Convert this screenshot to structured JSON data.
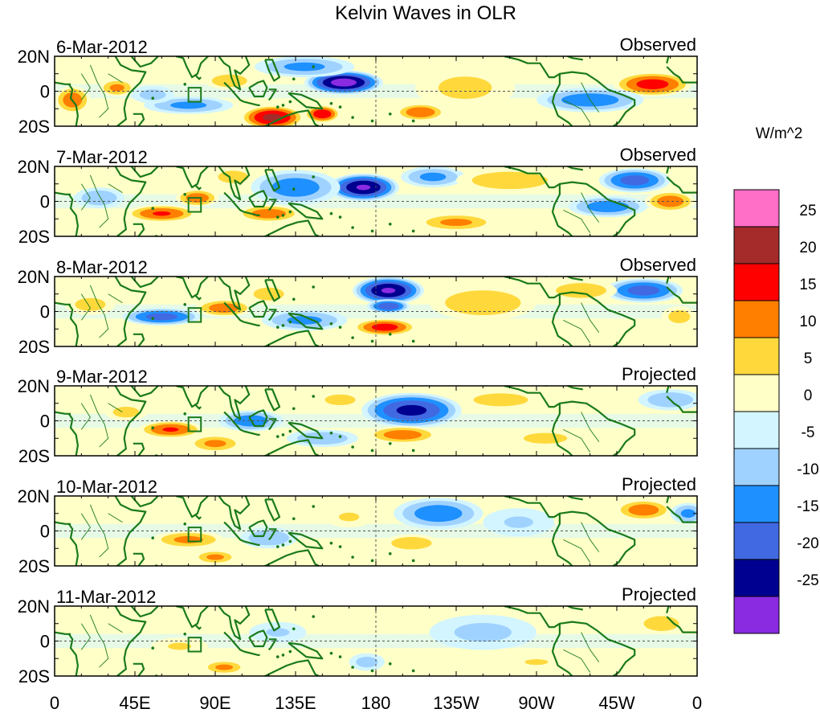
{
  "chart_data": {
    "type": "heatmap",
    "title": "Kelvin Waves in OLR",
    "colorbar": {
      "units": "W/m^2",
      "ticks": [
        "25",
        "20",
        "15",
        "10",
        "5",
        "0",
        "-5",
        "-10",
        "-15",
        "-20",
        "-25"
      ],
      "colors": [
        "#ff6ec7",
        "#a52a2a",
        "#ff0000",
        "#ff7f00",
        "#ffd93c",
        "#ffffc8",
        "#d2f5ff",
        "#a0d2ff",
        "#1e90ff",
        "#4169e1",
        "#000090",
        "#8a2be2"
      ]
    },
    "x_axis": {
      "ticks": [
        "0",
        "45E",
        "90E",
        "135E",
        "180",
        "135W",
        "90W",
        "45W",
        "0"
      ],
      "range_lon_east": [
        0,
        360
      ]
    },
    "y_axis": {
      "ticks": [
        "20N",
        "0",
        "20S"
      ],
      "range_lat": [
        -20,
        20
      ]
    },
    "reference_line": "180",
    "box_marker": {
      "lon": [
        75,
        82
      ],
      "lat": [
        -6,
        2
      ]
    },
    "panels": [
      {
        "date": "6-Mar-2012",
        "status": "Observed",
        "blobs": [
          {
            "lon": 162,
            "lat": 5,
            "amp": -28,
            "rx": 22,
            "ry": 7
          },
          {
            "lon": 122,
            "lat": -15,
            "amp": 22,
            "rx": 18,
            "ry": 7
          },
          {
            "lon": 140,
            "lat": 14,
            "amp": -12,
            "rx": 28,
            "ry": 6
          },
          {
            "lon": 335,
            "lat": 4,
            "amp": 18,
            "rx": 22,
            "ry": 7
          },
          {
            "lon": 300,
            "lat": -5,
            "amp": -14,
            "rx": 30,
            "ry": 7
          },
          {
            "lon": 230,
            "lat": 2,
            "amp": 7,
            "rx": 28,
            "ry": 12
          },
          {
            "lon": 75,
            "lat": -8,
            "amp": -12,
            "rx": 25,
            "ry": 5
          },
          {
            "lon": 35,
            "lat": 2,
            "amp": 12,
            "rx": 10,
            "ry": 5
          },
          {
            "lon": 98,
            "lat": 6,
            "amp": 10,
            "rx": 14,
            "ry": 5
          },
          {
            "lon": 150,
            "lat": -13,
            "amp": 20,
            "rx": 10,
            "ry": 5
          },
          {
            "lon": 10,
            "lat": -5,
            "amp": 14,
            "rx": 10,
            "ry": 8
          },
          {
            "lon": 205,
            "lat": -12,
            "amp": 15,
            "rx": 14,
            "ry": 5
          },
          {
            "lon": 55,
            "lat": -2,
            "amp": -8,
            "rx": 12,
            "ry": 5
          }
        ]
      },
      {
        "date": "7-Mar-2012",
        "status": "Observed",
        "blobs": [
          {
            "lon": 173,
            "lat": 8,
            "amp": -26,
            "rx": 20,
            "ry": 8
          },
          {
            "lon": 135,
            "lat": 8,
            "amp": -14,
            "rx": 25,
            "ry": 10
          },
          {
            "lon": 212,
            "lat": 14,
            "amp": -12,
            "rx": 18,
            "ry": 6
          },
          {
            "lon": 60,
            "lat": -7,
            "amp": 16,
            "rx": 20,
            "ry": 5
          },
          {
            "lon": 80,
            "lat": 2,
            "amp": 14,
            "rx": 12,
            "ry": 5
          },
          {
            "lon": 255,
            "lat": 12,
            "amp": 10,
            "rx": 30,
            "ry": 7
          },
          {
            "lon": 325,
            "lat": 12,
            "amp": -18,
            "rx": 20,
            "ry": 7
          },
          {
            "lon": 310,
            "lat": -3,
            "amp": -14,
            "rx": 22,
            "ry": 6
          },
          {
            "lon": 345,
            "lat": 0,
            "amp": 14,
            "rx": 14,
            "ry": 6
          },
          {
            "lon": 120,
            "lat": -7,
            "amp": 14,
            "rx": 18,
            "ry": 5
          },
          {
            "lon": 225,
            "lat": -12,
            "amp": 12,
            "rx": 22,
            "ry": 5
          },
          {
            "lon": 25,
            "lat": 2,
            "amp": -10,
            "rx": 14,
            "ry": 6
          },
          {
            "lon": 100,
            "lat": 14,
            "amp": 10,
            "rx": 12,
            "ry": 5
          }
        ]
      },
      {
        "date": "8-Mar-2012",
        "status": "Observed",
        "blobs": [
          {
            "lon": 187,
            "lat": 12,
            "amp": -26,
            "rx": 20,
            "ry": 8
          },
          {
            "lon": 187,
            "lat": 3,
            "amp": -20,
            "rx": 12,
            "ry": 4
          },
          {
            "lon": 60,
            "lat": -3,
            "amp": -18,
            "rx": 22,
            "ry": 5
          },
          {
            "lon": 95,
            "lat": 2,
            "amp": 14,
            "rx": 16,
            "ry": 5
          },
          {
            "lon": 185,
            "lat": -9,
            "amp": 18,
            "rx": 18,
            "ry": 5
          },
          {
            "lon": 330,
            "lat": 12,
            "amp": -18,
            "rx": 22,
            "ry": 7
          },
          {
            "lon": 240,
            "lat": 5,
            "amp": 10,
            "rx": 30,
            "ry": 10
          },
          {
            "lon": 140,
            "lat": -5,
            "amp": -12,
            "rx": 24,
            "ry": 6
          },
          {
            "lon": 295,
            "lat": 12,
            "amp": 10,
            "rx": 20,
            "ry": 6
          },
          {
            "lon": 20,
            "lat": 4,
            "amp": 8,
            "rx": 14,
            "ry": 6
          },
          {
            "lon": 120,
            "lat": 10,
            "amp": 8,
            "rx": 14,
            "ry": 6
          },
          {
            "lon": 350,
            "lat": -3,
            "amp": 8,
            "rx": 10,
            "ry": 6
          }
        ]
      },
      {
        "date": "9-Mar-2012",
        "status": "Projected",
        "blobs": [
          {
            "lon": 200,
            "lat": 6,
            "amp": -22,
            "rx": 28,
            "ry": 10
          },
          {
            "lon": 65,
            "lat": -5,
            "amp": 16,
            "rx": 18,
            "ry": 5
          },
          {
            "lon": 110,
            "lat": 0,
            "amp": -14,
            "rx": 18,
            "ry": 6
          },
          {
            "lon": 195,
            "lat": -8,
            "amp": 14,
            "rx": 20,
            "ry": 5
          },
          {
            "lon": 90,
            "lat": -13,
            "amp": 12,
            "rx": 15,
            "ry": 5
          },
          {
            "lon": 250,
            "lat": 12,
            "amp": 8,
            "rx": 25,
            "ry": 6
          },
          {
            "lon": 345,
            "lat": 12,
            "amp": -10,
            "rx": 18,
            "ry": 6
          },
          {
            "lon": 150,
            "lat": -10,
            "amp": -10,
            "rx": 20,
            "ry": 5
          },
          {
            "lon": 275,
            "lat": -10,
            "amp": 8,
            "rx": 20,
            "ry": 5
          },
          {
            "lon": 40,
            "lat": 5,
            "amp": 8,
            "rx": 12,
            "ry": 5
          },
          {
            "lon": 160,
            "lat": 12,
            "amp": 8,
            "rx": 14,
            "ry": 5
          }
        ]
      },
      {
        "date": "10-Mar-2012",
        "status": "Projected",
        "blobs": [
          {
            "lon": 215,
            "lat": 10,
            "amp": -14,
            "rx": 25,
            "ry": 9
          },
          {
            "lon": 75,
            "lat": -5,
            "amp": 12,
            "rx": 20,
            "ry": 5
          },
          {
            "lon": 330,
            "lat": 12,
            "amp": 14,
            "rx": 16,
            "ry": 6
          },
          {
            "lon": 120,
            "lat": -4,
            "amp": -10,
            "rx": 16,
            "ry": 6
          },
          {
            "lon": 90,
            "lat": -15,
            "amp": 12,
            "rx": 12,
            "ry": 4
          },
          {
            "lon": 200,
            "lat": -7,
            "amp": 10,
            "rx": 16,
            "ry": 5
          },
          {
            "lon": 355,
            "lat": 10,
            "amp": -12,
            "rx": 10,
            "ry": 6
          },
          {
            "lon": 260,
            "lat": 5,
            "amp": -6,
            "rx": 20,
            "ry": 8
          },
          {
            "lon": 165,
            "lat": 8,
            "amp": 6,
            "rx": 14,
            "ry": 6
          }
        ]
      },
      {
        "date": "11-Mar-2012",
        "status": "Projected",
        "blobs": [
          {
            "lon": 95,
            "lat": -15,
            "amp": 12,
            "rx": 12,
            "ry": 4
          },
          {
            "lon": 240,
            "lat": 5,
            "amp": -7,
            "rx": 30,
            "ry": 10
          },
          {
            "lon": 340,
            "lat": 10,
            "amp": 10,
            "rx": 14,
            "ry": 6
          },
          {
            "lon": 125,
            "lat": 5,
            "amp": -6,
            "rx": 16,
            "ry": 6
          },
          {
            "lon": 70,
            "lat": -3,
            "amp": 6,
            "rx": 16,
            "ry": 5
          },
          {
            "lon": 175,
            "lat": -12,
            "amp": -8,
            "rx": 10,
            "ry": 5
          },
          {
            "lon": 270,
            "lat": -12,
            "amp": 6,
            "rx": 16,
            "ry": 4
          }
        ]
      }
    ]
  }
}
